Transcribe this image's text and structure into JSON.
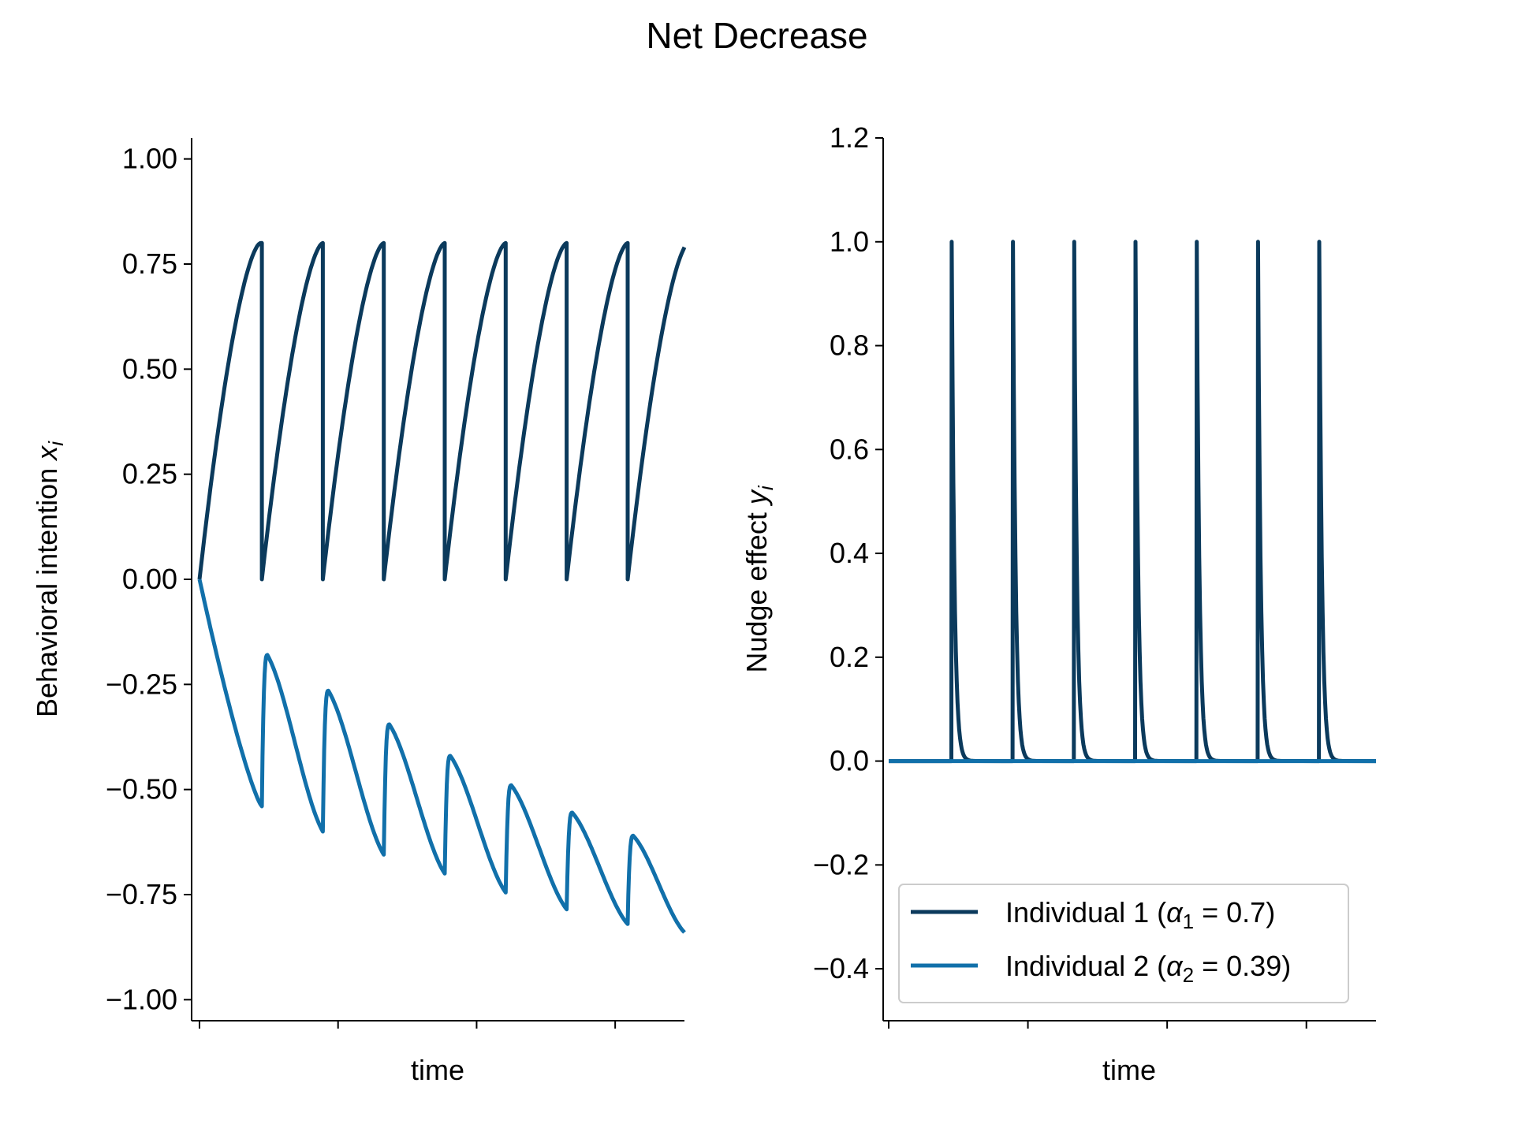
{
  "figure": {
    "title": "Net Decrease"
  },
  "colors": {
    "individual1": "#0b3a5c",
    "individual2": "#1170aa",
    "axis": "#000000"
  },
  "chart_data": [
    {
      "type": "line",
      "ylabel_main": "Behavioral intention ",
      "ylabel_var": "x",
      "ylabel_sub": "i",
      "xlabel": "time",
      "ylim": [
        -1.05,
        1.05
      ],
      "yticks": [
        1.0,
        0.75,
        0.5,
        0.25,
        0.0,
        -0.25,
        -0.5,
        -0.75,
        -1.0
      ],
      "ytick_labels": [
        "1.00",
        "0.75",
        "0.50",
        "0.25",
        "0.00",
        "−0.25",
        "−0.50",
        "−0.75",
        "−1.00"
      ],
      "xlim": [
        0,
        70
      ],
      "xticks": [
        0,
        20,
        40,
        60
      ],
      "nudge_times": [
        9,
        17.8,
        26.6,
        35.4,
        44.2,
        53,
        61.8
      ],
      "series": [
        {
          "name": "Individual 1",
          "model": "sawtooth-rise",
          "peak": 0.8,
          "post_nudge_value": 0.0,
          "end_value": 0.79,
          "color_key": "individual1"
        },
        {
          "name": "Individual 2",
          "model": "decay-with-bumps",
          "pre_nudge_minima": [
            -0.54,
            -0.6,
            -0.655,
            -0.7,
            -0.745,
            -0.785,
            -0.82
          ],
          "post_nudge_peaks": [
            -0.18,
            -0.265,
            -0.345,
            -0.42,
            -0.49,
            -0.555,
            -0.61
          ],
          "end_value": -0.84,
          "color_key": "individual2"
        }
      ]
    },
    {
      "type": "line",
      "ylabel_main": "Nudge effect ",
      "ylabel_var": "y",
      "ylabel_sub": "i",
      "xlabel": "time",
      "ylim": [
        -0.5,
        1.2
      ],
      "yticks": [
        1.2,
        1.0,
        0.8,
        0.6,
        0.4,
        0.2,
        0.0,
        -0.2,
        -0.4
      ],
      "ytick_labels": [
        "1.2",
        "1.0",
        "0.8",
        "0.6",
        "0.4",
        "0.2",
        "0.0",
        "−0.2",
        "−0.4"
      ],
      "xlim": [
        0,
        70
      ],
      "xticks": [
        0,
        20,
        40,
        60
      ],
      "nudge_times": [
        9,
        17.8,
        26.6,
        35.4,
        44.2,
        53,
        61.8
      ],
      "series": [
        {
          "name": "Individual 1",
          "model": "spike-decay",
          "peak": 1.0,
          "baseline": 0.0,
          "color_key": "individual1"
        },
        {
          "name": "Individual 2",
          "model": "flat",
          "baseline": 0.0,
          "color_key": "individual2"
        }
      ],
      "legend": {
        "position": "lower-right",
        "entries": [
          {
            "prefix": "Individual 1 (",
            "symbol": "α",
            "sub": "1",
            "suffix": " = 0.7)",
            "color_key": "individual1"
          },
          {
            "prefix": "Individual 2 (",
            "symbol": "α",
            "sub": "2",
            "suffix": " = 0.39)",
            "color_key": "individual2"
          }
        ]
      }
    }
  ]
}
